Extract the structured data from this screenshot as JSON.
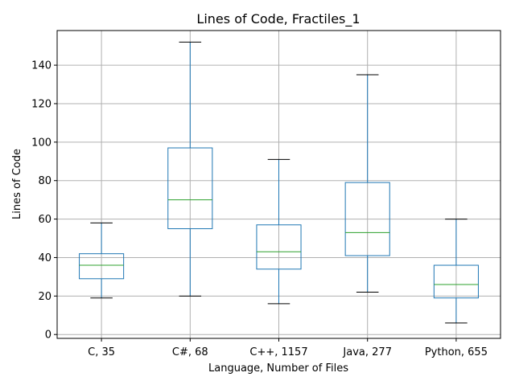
{
  "chart_data": {
    "type": "box",
    "title": "Lines of Code, Fractiles_1",
    "xlabel": "Language, Number of Files",
    "ylabel": "Lines of Code",
    "ylim": [
      -2,
      158
    ],
    "yticks": [
      0,
      20,
      40,
      60,
      80,
      100,
      120,
      140
    ],
    "grid": true,
    "categories": [
      "C, 35",
      "C#, 68",
      "C++, 1157",
      "Java, 277",
      "Python, 655"
    ],
    "boxes": [
      {
        "category": "C, 35",
        "whisker_low": 19,
        "q1": 29,
        "median": 36,
        "q3": 42,
        "whisker_high": 58
      },
      {
        "category": "C#, 68",
        "whisker_low": 20,
        "q1": 55,
        "median": 70,
        "q3": 97,
        "whisker_high": 152
      },
      {
        "category": "C++, 1157",
        "whisker_low": 16,
        "q1": 34,
        "median": 43,
        "q3": 57,
        "whisker_high": 91
      },
      {
        "category": "Java, 277",
        "whisker_low": 22,
        "q1": 41,
        "median": 53,
        "q3": 79,
        "whisker_high": 135
      },
      {
        "category": "Python, 655",
        "whisker_low": 6,
        "q1": 19,
        "median": 26,
        "q3": 36,
        "whisker_high": 60
      }
    ],
    "colors": {
      "box": "#1f77b4",
      "median": "#2ca02c",
      "cap": "#000000",
      "grid": "#b0b0b0",
      "axis": "#000000"
    }
  }
}
